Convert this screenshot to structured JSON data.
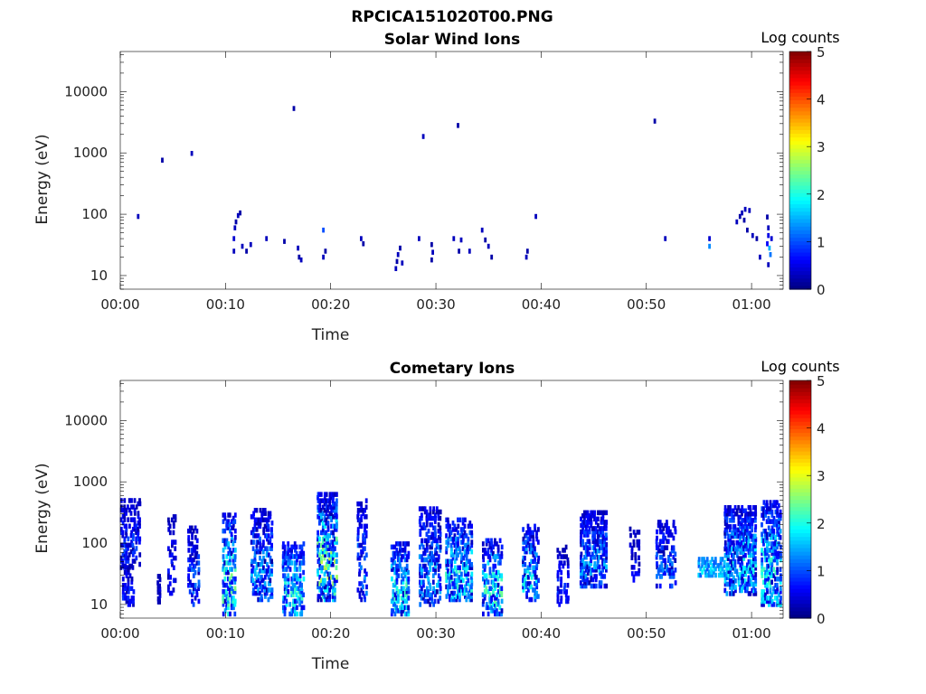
{
  "figure": {
    "title": "RPCICA151020T00.PNG"
  },
  "chart_data": [
    {
      "type": "heatmap",
      "title": "Solar Wind Ions",
      "xlabel": "Time",
      "ylabel": "Energy (eV)",
      "x_unit": "minutes since 00:00",
      "xlim": [
        0,
        63
      ],
      "ylim": [
        6,
        45000
      ],
      "y_scale": "log",
      "x_tick_values": [
        0,
        10,
        20,
        30,
        40,
        50,
        60
      ],
      "x_tick_labels": [
        "00:00",
        "00:10",
        "00:20",
        "00:30",
        "00:40",
        "00:50",
        "01:00"
      ],
      "y_tick_values": [
        10,
        100,
        1000,
        10000
      ],
      "y_tick_labels": [
        "10",
        "100",
        "1000",
        "10000"
      ],
      "colorbar": {
        "label": "Log counts",
        "range": [
          0,
          5
        ],
        "tick_labels": [
          "0",
          "1",
          "2",
          "3",
          "4",
          "5"
        ]
      },
      "cells": [
        [
          1.7,
          92,
          0.3
        ],
        [
          4.0,
          760,
          0.2
        ],
        [
          6.8,
          980,
          0.3
        ],
        [
          10.8,
          25,
          0.3
        ],
        [
          10.8,
          40,
          0.4
        ],
        [
          10.9,
          60,
          0.3
        ],
        [
          11.0,
          75,
          0.2
        ],
        [
          11.2,
          95,
          0.3
        ],
        [
          11.4,
          105,
          0.2
        ],
        [
          11.6,
          30,
          0.3
        ],
        [
          12.0,
          25,
          0.2
        ],
        [
          12.4,
          32,
          0.3
        ],
        [
          13.9,
          40,
          0.3
        ],
        [
          15.6,
          36,
          0.2
        ],
        [
          16.5,
          5300,
          0.2
        ],
        [
          16.9,
          28,
          0.3
        ],
        [
          17.0,
          20,
          0.2
        ],
        [
          17.2,
          18,
          0.3
        ],
        [
          19.3,
          55,
          1.0
        ],
        [
          19.3,
          20,
          0.3
        ],
        [
          19.5,
          25,
          0.2
        ],
        [
          22.9,
          40,
          0.3
        ],
        [
          23.1,
          33,
          0.2
        ],
        [
          26.2,
          13,
          0.3
        ],
        [
          26.3,
          17,
          0.2
        ],
        [
          26.4,
          22,
          0.3
        ],
        [
          26.6,
          28,
          0.2
        ],
        [
          26.8,
          16,
          0.3
        ],
        [
          28.4,
          40,
          0.3
        ],
        [
          28.8,
          1850,
          0.3
        ],
        [
          29.6,
          18,
          0.2
        ],
        [
          29.7,
          24,
          0.3
        ],
        [
          29.6,
          32,
          0.2
        ],
        [
          31.7,
          40,
          0.3
        ],
        [
          32.1,
          2800,
          0.2
        ],
        [
          32.2,
          25,
          0.2
        ],
        [
          32.4,
          38,
          0.3
        ],
        [
          33.2,
          25,
          0.3
        ],
        [
          34.4,
          55,
          0.3
        ],
        [
          34.7,
          38,
          0.2
        ],
        [
          35.0,
          30,
          0.3
        ],
        [
          35.3,
          20,
          0.2
        ],
        [
          38.6,
          20,
          0.3
        ],
        [
          38.7,
          25,
          0.2
        ],
        [
          39.5,
          92,
          0.3
        ],
        [
          50.8,
          3300,
          0.2
        ],
        [
          51.8,
          40,
          0.3
        ],
        [
          56.0,
          30,
          1.3
        ],
        [
          56.0,
          40,
          0.4
        ],
        [
          58.6,
          75,
          0.3
        ],
        [
          58.9,
          92,
          0.2
        ],
        [
          59.1,
          105,
          0.3
        ],
        [
          59.3,
          80,
          0.2
        ],
        [
          59.4,
          120,
          0.3
        ],
        [
          59.8,
          115,
          0.3
        ],
        [
          59.6,
          55,
          0.2
        ],
        [
          60.1,
          45,
          0.3
        ],
        [
          60.5,
          40,
          0.2
        ],
        [
          60.8,
          20,
          0.3
        ],
        [
          61.5,
          90,
          0.2
        ],
        [
          61.6,
          60,
          0.3
        ],
        [
          61.6,
          45,
          0.5
        ],
        [
          61.7,
          28,
          1.5
        ],
        [
          61.8,
          22,
          1.2
        ],
        [
          61.6,
          15,
          0.3
        ],
        [
          61.9,
          40,
          0.4
        ],
        [
          61.5,
          33,
          0.6
        ]
      ]
    },
    {
      "type": "heatmap",
      "title": "Cometary Ions",
      "xlabel": "Time",
      "ylabel": "Energy (eV)",
      "x_unit": "minutes since 00:00",
      "xlim": [
        0,
        63
      ],
      "ylim": [
        6,
        45000
      ],
      "y_scale": "log",
      "x_tick_values": [
        0,
        10,
        20,
        30,
        40,
        50,
        60
      ],
      "x_tick_labels": [
        "00:00",
        "00:10",
        "00:20",
        "00:30",
        "00:40",
        "00:50",
        "01:00"
      ],
      "y_tick_values": [
        10,
        100,
        1000,
        10000
      ],
      "y_tick_labels": [
        "10",
        "100",
        "1000",
        "10000"
      ],
      "colorbar": {
        "label": "Log counts",
        "range": [
          0,
          5
        ],
        "tick_labels": [
          "0",
          "1",
          "2",
          "3",
          "4",
          "5"
        ]
      },
      "clusters": [
        {
          "t": [
            0.1,
            2.0
          ],
          "e": [
            40,
            550
          ],
          "lo": 0.2,
          "hi": 1.0,
          "density": 0.45
        },
        {
          "t": [
            0.3,
            1.3
          ],
          "e": [
            10,
            45
          ],
          "lo": 0.2,
          "hi": 0.9,
          "density": 0.5
        },
        {
          "t": [
            3.6,
            3.9
          ],
          "e": [
            11,
            32
          ],
          "lo": 0.2,
          "hi": 0.5,
          "density": 0.8
        },
        {
          "t": [
            4.6,
            5.3
          ],
          "e": [
            12,
            300
          ],
          "lo": 0.2,
          "hi": 0.8,
          "density": 0.35
        },
        {
          "t": [
            6.5,
            7.5
          ],
          "e": [
            10,
            180
          ],
          "lo": 0.2,
          "hi": 1.2,
          "density": 0.45
        },
        {
          "t": [
            9.8,
            11.0
          ],
          "e": [
            7,
            300
          ],
          "lo": 0.2,
          "hi": 2.5,
          "density": 0.5
        },
        {
          "t": [
            12.5,
            14.5
          ],
          "e": [
            12,
            350
          ],
          "lo": 0.2,
          "hi": 1.6,
          "density": 0.45
        },
        {
          "t": [
            15.5,
            17.5
          ],
          "e": [
            7,
            100
          ],
          "lo": 0.4,
          "hi": 2.2,
          "density": 0.55
        },
        {
          "t": [
            18.8,
            20.6
          ],
          "e": [
            12,
            650
          ],
          "lo": 0.2,
          "hi": 2.8,
          "density": 0.55
        },
        {
          "t": [
            22.6,
            23.4
          ],
          "e": [
            12,
            500
          ],
          "lo": 0.2,
          "hi": 1.4,
          "density": 0.4
        },
        {
          "t": [
            25.8,
            27.5
          ],
          "e": [
            7,
            100
          ],
          "lo": 0.3,
          "hi": 2.3,
          "density": 0.55
        },
        {
          "t": [
            28.5,
            30.5
          ],
          "e": [
            10,
            400
          ],
          "lo": 0.2,
          "hi": 1.6,
          "density": 0.45
        },
        {
          "t": [
            31.0,
            33.5
          ],
          "e": [
            12,
            250
          ],
          "lo": 0.3,
          "hi": 2.2,
          "density": 0.55
        },
        {
          "t": [
            34.5,
            36.3
          ],
          "e": [
            7,
            120
          ],
          "lo": 0.3,
          "hi": 2.4,
          "density": 0.5
        },
        {
          "t": [
            38.3,
            39.8
          ],
          "e": [
            12,
            200
          ],
          "lo": 0.2,
          "hi": 2.0,
          "density": 0.45
        },
        {
          "t": [
            41.6,
            42.6
          ],
          "e": [
            10,
            90
          ],
          "lo": 0.2,
          "hi": 0.9,
          "density": 0.4
        },
        {
          "t": [
            43.8,
            46.2
          ],
          "e": [
            20,
            320
          ],
          "lo": 0.2,
          "hi": 1.6,
          "density": 0.65
        },
        {
          "t": [
            48.5,
            49.3
          ],
          "e": [
            25,
            180
          ],
          "lo": 0.2,
          "hi": 0.8,
          "density": 0.3
        },
        {
          "t": [
            51.0,
            52.8
          ],
          "e": [
            20,
            220
          ],
          "lo": 0.2,
          "hi": 1.3,
          "density": 0.45
        },
        {
          "t": [
            55.0,
            57.5
          ],
          "e": [
            30,
            60
          ],
          "lo": 1.0,
          "hi": 2.0,
          "density": 0.6
        },
        {
          "t": [
            57.5,
            60.5
          ],
          "e": [
            15,
            420
          ],
          "lo": 0.2,
          "hi": 2.0,
          "density": 0.65
        },
        {
          "t": [
            61.0,
            62.8
          ],
          "e": [
            10,
            500
          ],
          "lo": 0.3,
          "hi": 2.2,
          "density": 0.6
        }
      ]
    }
  ]
}
